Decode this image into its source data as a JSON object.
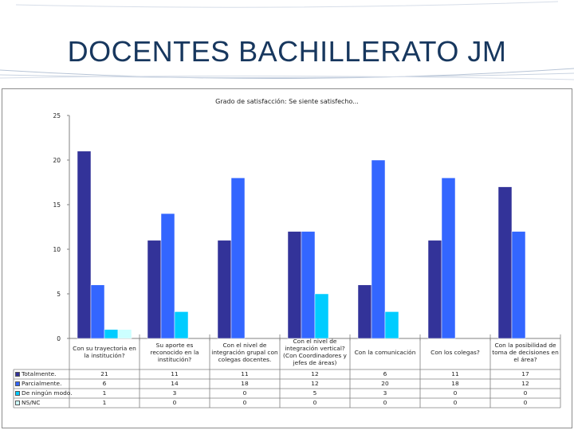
{
  "slide": {
    "title": "DOCENTES BACHILLERATO JM"
  },
  "chart_data": {
    "type": "bar",
    "title": "Grado de satisfacción: Se siente satisfecho...",
    "xlabel": "",
    "ylabel": "",
    "ylim": [
      0,
      25
    ],
    "yticks": [
      0,
      5,
      10,
      15,
      20,
      25
    ],
    "grid": false,
    "legend": "table-bottom",
    "categories": [
      "Con su trayectoria en la institución?",
      "Su aporte es reconocido en la institución?",
      "Con el nivel de integración grupal con colegas docentes.",
      "Con el nivel de integración vertical? (Con Coordinadores y jefes de áreas)",
      "Con la comunicación",
      "Con los colegas?",
      "Con la posibilidad de toma de decisiones en el área?"
    ],
    "series": [
      {
        "name": "Totalmente.",
        "color": "#333399",
        "values": [
          21,
          11,
          11,
          12,
          6,
          11,
          17
        ]
      },
      {
        "name": "Parcialmente.",
        "color": "#3366ff",
        "values": [
          6,
          14,
          18,
          12,
          20,
          18,
          12
        ]
      },
      {
        "name": "De ningún modo.",
        "color": "#00ccff",
        "values": [
          1,
          3,
          0,
          5,
          3,
          0,
          0
        ]
      },
      {
        "name": "NS/NC",
        "color": "#ccffff",
        "values": [
          1,
          0,
          0,
          0,
          0,
          0,
          0
        ]
      }
    ]
  }
}
